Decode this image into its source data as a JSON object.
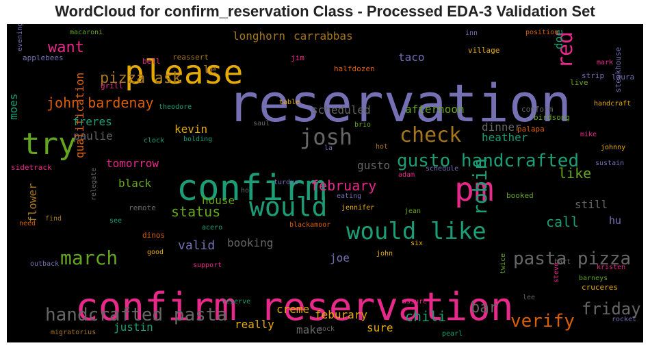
{
  "chart_data": {
    "type": "wordcloud",
    "title": "WordCloud for confirm_reservation Class - Processed EDA-3 Validation Set",
    "background": "#000000",
    "colormap": [
      "#1b9e77",
      "#d95f02",
      "#7570b3",
      "#e7298a",
      "#66a61e",
      "#e6ab02",
      "#a6761d",
      "#666666"
    ],
    "words": [
      {
        "text": "reservation",
        "weight": 1.0,
        "color": "#7570b3"
      },
      {
        "text": "confirm reservation",
        "weight": 0.78,
        "color": "#e7298a"
      },
      {
        "text": "confirm",
        "weight": 0.7,
        "color": "#1b9e77"
      },
      {
        "text": "please",
        "weight": 0.6,
        "color": "#e6ab02"
      },
      {
        "text": "pm",
        "weight": 0.6,
        "color": "#e7298a"
      },
      {
        "text": "try",
        "weight": 0.55,
        "color": "#66a61e"
      },
      {
        "text": "would",
        "weight": 0.5,
        "color": "#1b9e77"
      },
      {
        "text": "would like",
        "weight": 0.45,
        "color": "#1b9e77"
      },
      {
        "text": "josh",
        "weight": 0.42,
        "color": "#666666"
      },
      {
        "text": "check",
        "weight": 0.4,
        "color": "#a6761d"
      },
      {
        "text": "red",
        "weight": 0.38,
        "color": "#e7298a"
      },
      {
        "text": "robin",
        "weight": 0.36,
        "color": "#1b9e77"
      },
      {
        "text": "gusto handcrafted",
        "weight": 0.34,
        "color": "#1b9e77"
      },
      {
        "text": "march",
        "weight": 0.33,
        "color": "#66a61e"
      },
      {
        "text": "pasta pizza",
        "weight": 0.32,
        "color": "#666666"
      },
      {
        "text": "handcrafted pasta",
        "weight": 0.32,
        "color": "#666666"
      },
      {
        "text": "verify",
        "weight": 0.32,
        "color": "#d95f02"
      },
      {
        "text": "friday",
        "weight": 0.3,
        "color": "#666666"
      },
      {
        "text": "want",
        "weight": 0.3,
        "color": "#e7298a"
      },
      {
        "text": "pizza ask",
        "weight": 0.3,
        "color": "#a6761d"
      },
      {
        "text": "bar",
        "weight": 0.29,
        "color": "#666666"
      },
      {
        "text": "john bardenay",
        "weight": 0.28,
        "color": "#d95f02"
      },
      {
        "text": "february",
        "weight": 0.27,
        "color": "#e7298a"
      },
      {
        "text": "status",
        "weight": 0.27,
        "color": "#66a61e"
      },
      {
        "text": "call",
        "weight": 0.27,
        "color": "#1b9e77"
      },
      {
        "text": "like",
        "weight": 0.27,
        "color": "#66a61e"
      },
      {
        "text": "chili",
        "weight": 0.26,
        "color": "#1b9e77"
      },
      {
        "text": "qualification",
        "weight": 0.22,
        "color": "#d95f02"
      },
      {
        "text": "valid",
        "weight": 0.23,
        "color": "#7570b3"
      },
      {
        "text": "booking",
        "weight": 0.22,
        "color": "#666666"
      },
      {
        "text": "longhorn",
        "weight": 0.22,
        "color": "#a6761d"
      },
      {
        "text": "carrabbas",
        "weight": 0.22,
        "color": "#a6761d"
      },
      {
        "text": "taco",
        "weight": 0.2,
        "color": "#7570b3"
      },
      {
        "text": "afternoon",
        "weight": 0.2,
        "color": "#66a61e"
      },
      {
        "text": "scheduled",
        "weight": 0.2,
        "color": "#666666"
      },
      {
        "text": "freres",
        "weight": 0.2,
        "color": "#1b9e77"
      },
      {
        "text": "paulie",
        "weight": 0.2,
        "color": "#666666"
      },
      {
        "text": "kevin",
        "weight": 0.2,
        "color": "#e6ab02"
      },
      {
        "text": "heather",
        "weight": 0.2,
        "color": "#1b9e77"
      },
      {
        "text": "dinner",
        "weight": 0.19,
        "color": "#666666"
      },
      {
        "text": "tomorrow",
        "weight": 0.19,
        "color": "#e7298a"
      },
      {
        "text": "black",
        "weight": 0.19,
        "color": "#66a61e"
      },
      {
        "text": "house",
        "weight": 0.19,
        "color": "#66a61e"
      },
      {
        "text": "gusto",
        "weight": 0.19,
        "color": "#666666"
      },
      {
        "text": "still",
        "weight": 0.19,
        "color": "#666666"
      },
      {
        "text": "hu",
        "weight": 0.18,
        "color": "#7570b3"
      },
      {
        "text": "doe",
        "weight": 0.18,
        "color": "#1b9e77"
      },
      {
        "text": "le",
        "weight": 0.17,
        "color": "#a6761d"
      },
      {
        "text": "moes",
        "weight": 0.18,
        "color": "#1b9e77"
      },
      {
        "text": "flower",
        "weight": 0.17,
        "color": "#a6761d"
      },
      {
        "text": "joe",
        "weight": 0.17,
        "color": "#7570b3"
      },
      {
        "text": "creme",
        "weight": 0.18,
        "color": "#e6ab02"
      },
      {
        "text": "feburary",
        "weight": 0.18,
        "color": "#e6ab02"
      },
      {
        "text": "justin",
        "weight": 0.18,
        "color": "#1b9e77"
      },
      {
        "text": "really",
        "weight": 0.18,
        "color": "#e6ab02"
      },
      {
        "text": "make",
        "weight": 0.17,
        "color": "#666666"
      },
      {
        "text": "sure",
        "weight": 0.18,
        "color": "#e6ab02"
      },
      {
        "text": "macaroni",
        "weight": 0.1,
        "color": "#66a61e"
      },
      {
        "text": "evening",
        "weight": 0.1,
        "color": "#7570b3"
      },
      {
        "text": "applebees",
        "weight": 0.1,
        "color": "#7570b3"
      },
      {
        "text": "bell",
        "weight": 0.1,
        "color": "#e7298a"
      },
      {
        "text": "reassert",
        "weight": 0.1,
        "color": "#a6761d"
      },
      {
        "text": "grill",
        "weight": 0.1,
        "color": "#e7298a"
      },
      {
        "text": "halfdozen",
        "weight": 0.1,
        "color": "#d95f02"
      },
      {
        "text": "jim",
        "weight": 0.1,
        "color": "#e7298a"
      },
      {
        "text": "inn",
        "weight": 0.1,
        "color": "#7570b3"
      },
      {
        "text": "position",
        "weight": 0.1,
        "color": "#d95f02"
      },
      {
        "text": "village",
        "weight": 0.1,
        "color": "#e6ab02"
      },
      {
        "text": "mark",
        "weight": 0.1,
        "color": "#e7298a"
      },
      {
        "text": "strip",
        "weight": 0.1,
        "color": "#7570b3"
      },
      {
        "text": "laura",
        "weight": 0.1,
        "color": "#7570b3"
      },
      {
        "text": "live",
        "weight": 0.1,
        "color": "#66a61e"
      },
      {
        "text": "steakhouse",
        "weight": 0.1,
        "color": "#7570b3"
      },
      {
        "text": "handcraft",
        "weight": 0.1,
        "color": "#e6ab02"
      },
      {
        "text": "theodore",
        "weight": 0.1,
        "color": "#1b9e77"
      },
      {
        "text": "table",
        "weight": 0.1,
        "color": "#e6ab02"
      },
      {
        "text": "conform",
        "weight": 0.1,
        "color": "#666666"
      },
      {
        "text": "birdsong",
        "weight": 0.1,
        "color": "#66a61e"
      },
      {
        "text": "saul",
        "weight": 0.1,
        "color": "#666666"
      },
      {
        "text": "brio",
        "weight": 0.1,
        "color": "#66a61e"
      },
      {
        "text": "palapa",
        "weight": 0.1,
        "color": "#d95f02"
      },
      {
        "text": "mike",
        "weight": 0.1,
        "color": "#e7298a"
      },
      {
        "text": "clock",
        "weight": 0.1,
        "color": "#1b9e77"
      },
      {
        "text": "bolding",
        "weight": 0.1,
        "color": "#1b9e77"
      },
      {
        "text": "la",
        "weight": 0.1,
        "color": "#7570b3"
      },
      {
        "text": "hot",
        "weight": 0.1,
        "color": "#a6761d"
      },
      {
        "text": "johnny",
        "weight": 0.1,
        "color": "#e6ab02"
      },
      {
        "text": "sidetrack",
        "weight": 0.1,
        "color": "#e7298a"
      },
      {
        "text": "schedule",
        "weight": 0.1,
        "color": "#7570b3"
      },
      {
        "text": "sustain",
        "weight": 0.1,
        "color": "#7570b3"
      },
      {
        "text": "adam",
        "weight": 0.1,
        "color": "#e7298a"
      },
      {
        "text": "turdus",
        "weight": 0.1,
        "color": "#7570b3"
      },
      {
        "text": "ho",
        "weight": 0.1,
        "color": "#666666"
      },
      {
        "text": "eating",
        "weight": 0.1,
        "color": "#7570b3"
      },
      {
        "text": "booked",
        "weight": 0.1,
        "color": "#66a61e"
      },
      {
        "text": "remote",
        "weight": 0.1,
        "color": "#666666"
      },
      {
        "text": "relegate",
        "weight": 0.1,
        "color": "#666666"
      },
      {
        "text": "jennifer",
        "weight": 0.1,
        "color": "#e6ab02"
      },
      {
        "text": "jean",
        "weight": 0.1,
        "color": "#66a61e"
      },
      {
        "text": "need",
        "weight": 0.1,
        "color": "#d95f02"
      },
      {
        "text": "find",
        "weight": 0.1,
        "color": "#a6761d"
      },
      {
        "text": "see",
        "weight": 0.1,
        "color": "#1b9e77"
      },
      {
        "text": "acero",
        "weight": 0.1,
        "color": "#1b9e77"
      },
      {
        "text": "blackamoor",
        "weight": 0.1,
        "color": "#d95f02"
      },
      {
        "text": "dinos",
        "weight": 0.1,
        "color": "#d95f02"
      },
      {
        "text": "six",
        "weight": 0.1,
        "color": "#e6ab02"
      },
      {
        "text": "good",
        "weight": 0.1,
        "color": "#e6ab02"
      },
      {
        "text": "john",
        "weight": 0.1,
        "color": "#e6ab02"
      },
      {
        "text": "support",
        "weight": 0.1,
        "color": "#e7298a"
      },
      {
        "text": "bart",
        "weight": 0.1,
        "color": "#666666"
      },
      {
        "text": "kristen",
        "weight": 0.1,
        "color": "#e7298a"
      },
      {
        "text": "outback",
        "weight": 0.1,
        "color": "#7570b3"
      },
      {
        "text": "barneys",
        "weight": 0.1,
        "color": "#66a61e"
      },
      {
        "text": "cruceres",
        "weight": 0.1,
        "color": "#e6ab02"
      },
      {
        "text": "twice",
        "weight": 0.1,
        "color": "#66a61e"
      },
      {
        "text": "reserve",
        "weight": 0.1,
        "color": "#1b9e77"
      },
      {
        "text": "assure",
        "weight": 0.1,
        "color": "#e7298a"
      },
      {
        "text": "lee",
        "weight": 0.1,
        "color": "#666666"
      },
      {
        "text": "steve",
        "weight": 0.1,
        "color": "#e7298a"
      },
      {
        "text": "rocket",
        "weight": 0.1,
        "color": "#7570b3"
      },
      {
        "text": "migratorius",
        "weight": 0.1,
        "color": "#a6761d"
      },
      {
        "text": "rock",
        "weight": 0.1,
        "color": "#666666"
      },
      {
        "text": "pearl",
        "weight": 0.1,
        "color": "#1b9e77"
      }
    ]
  }
}
